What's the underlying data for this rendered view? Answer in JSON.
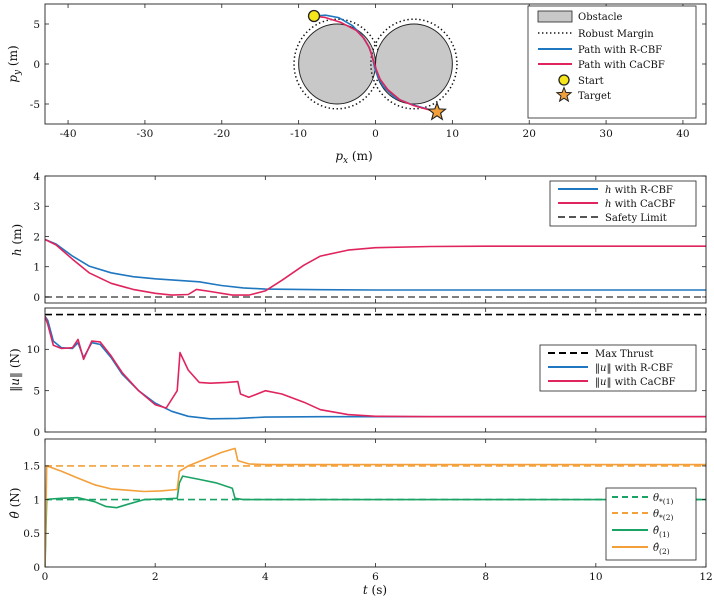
{
  "chart_data": [
    {
      "type": "line",
      "id": "trajectory",
      "xlabel": "p_x (m)",
      "ylabel": "p_y (m)",
      "xlim": [
        -43,
        43
      ],
      "ylim": [
        -7.5,
        7.5
      ],
      "xticks": [
        -40,
        -30,
        -20,
        -10,
        0,
        10,
        20,
        30,
        40
      ],
      "yticks": [
        -5,
        0,
        5
      ],
      "obstacles": [
        {
          "cx": -5,
          "cy": 0,
          "r": 5
        },
        {
          "cx": 5,
          "cy": 0,
          "r": 5
        }
      ],
      "robust_margin_radius": 5.6,
      "start": [
        -8,
        6
      ],
      "target": [
        8,
        -6
      ],
      "series": [
        {
          "name": "Path with R-CBF",
          "color": "#1f77c0",
          "x": [
            -8,
            -6.5,
            -4.8,
            -3,
            -1.8,
            -0.9,
            -0.5,
            -0.3,
            -0.1,
            0.3,
            1.0,
            2.5,
            4.5,
            6.3,
            8
          ],
          "y": [
            6,
            6.1,
            5.8,
            4.8,
            3.6,
            2.2,
            1.2,
            0.4,
            -0.5,
            -1.6,
            -2.8,
            -4.2,
            -5.0,
            -5.5,
            -6
          ]
        },
        {
          "name": "Path with CaCBF",
          "color": "#e0245e",
          "x": [
            -8,
            -6.5,
            -4.5,
            -2.5,
            -1.5,
            -0.8,
            -0.45,
            -0.2,
            0.1,
            0.6,
            1.6,
            3.2,
            5.0,
            6.5,
            8
          ],
          "y": [
            6,
            5.8,
            5.2,
            4.2,
            3.2,
            2.0,
            1.0,
            0.2,
            -0.7,
            -1.9,
            -3.2,
            -4.5,
            -5.2,
            -5.6,
            -6
          ]
        }
      ],
      "legend": {
        "position": "top-right",
        "entries": [
          "Obstacle",
          "Robust Margin",
          "Path with R-CBF",
          "Path with CaCBF",
          "Start",
          "Target"
        ]
      }
    },
    {
      "type": "line",
      "id": "h",
      "xlabel": "",
      "ylabel": "h (m)",
      "xlim": [
        0,
        12
      ],
      "ylim": [
        -0.2,
        4
      ],
      "yticks": [
        0,
        1,
        2,
        3,
        4
      ],
      "series": [
        {
          "name": "h with R-CBF",
          "color": "#1f77c0",
          "x": [
            0,
            0.2,
            0.5,
            0.8,
            1.2,
            1.6,
            2.0,
            2.4,
            2.8,
            3.2,
            3.6,
            4.0,
            5.0,
            6.0,
            8.0,
            10.0,
            12.0
          ],
          "y": [
            1.9,
            1.75,
            1.35,
            1.02,
            0.8,
            0.67,
            0.6,
            0.55,
            0.5,
            0.38,
            0.3,
            0.26,
            0.24,
            0.23,
            0.23,
            0.23,
            0.23
          ]
        },
        {
          "name": "h with CaCBF",
          "color": "#e0245e",
          "x": [
            0,
            0.2,
            0.5,
            0.8,
            1.2,
            1.6,
            2.0,
            2.3,
            2.6,
            2.75,
            3.0,
            3.4,
            3.7,
            4.0,
            4.3,
            4.7,
            5.0,
            5.5,
            6.0,
            7.0,
            8.0,
            10.0,
            12.0
          ],
          "y": [
            1.9,
            1.72,
            1.25,
            0.8,
            0.45,
            0.25,
            0.12,
            0.06,
            0.08,
            0.25,
            0.18,
            0.06,
            0.06,
            0.2,
            0.55,
            1.05,
            1.35,
            1.55,
            1.63,
            1.67,
            1.68,
            1.68,
            1.68
          ]
        },
        {
          "name": "Safety Limit",
          "color": "#555555",
          "dash": true,
          "x": [
            0,
            12
          ],
          "y": [
            0,
            0
          ]
        }
      ],
      "legend": {
        "position": "top-right",
        "entries": [
          "h with R-CBF",
          "h with CaCBF",
          "Safety Limit"
        ]
      }
    },
    {
      "type": "line",
      "id": "u",
      "xlabel": "",
      "ylabel": "||u|| (N)",
      "xlim": [
        0,
        12
      ],
      "ylim": [
        0,
        15
      ],
      "yticks": [
        0,
        5,
        10
      ],
      "series": [
        {
          "name": "Max Thrust",
          "color": "#000000",
          "dash": true,
          "x": [
            0,
            12
          ],
          "y": [
            14.2,
            14.2
          ]
        },
        {
          "name": "||u|| with R-CBF",
          "color": "#1f77c0",
          "x": [
            0,
            0.05,
            0.15,
            0.3,
            0.5,
            0.6,
            0.7,
            0.85,
            1.0,
            1.2,
            1.4,
            1.7,
            2.0,
            2.3,
            2.6,
            3.0,
            3.5,
            4.0,
            5.0,
            6.0,
            8.0,
            10.0,
            12.0
          ],
          "y": [
            14.0,
            13.5,
            11.0,
            10.2,
            10.1,
            10.8,
            9.0,
            10.8,
            10.6,
            9.0,
            7.0,
            5.0,
            3.5,
            2.5,
            1.9,
            1.6,
            1.65,
            1.8,
            1.85,
            1.85,
            1.85,
            1.85,
            1.85
          ]
        },
        {
          "name": "||u|| with CaCBF",
          "color": "#e0245e",
          "x": [
            0,
            0.05,
            0.15,
            0.3,
            0.5,
            0.6,
            0.7,
            0.85,
            1.0,
            1.2,
            1.4,
            1.7,
            2.0,
            2.2,
            2.4,
            2.45,
            2.6,
            2.8,
            3.0,
            3.3,
            3.5,
            3.55,
            3.7,
            4.0,
            4.3,
            4.7,
            5.0,
            5.5,
            6.0,
            7.0,
            8.0,
            10.0,
            12.0
          ],
          "y": [
            14.0,
            13.0,
            10.5,
            10.1,
            10.2,
            11.2,
            8.8,
            11.0,
            10.9,
            9.2,
            7.2,
            5.0,
            3.3,
            2.9,
            5.0,
            9.6,
            7.5,
            6.0,
            5.9,
            6.0,
            6.1,
            4.6,
            4.2,
            5.0,
            4.6,
            3.6,
            2.7,
            2.1,
            1.9,
            1.85,
            1.85,
            1.85,
            1.85
          ]
        }
      ],
      "legend": {
        "position": "center-right",
        "entries": [
          "Max Thrust",
          "||u|| with R-CBF",
          "||u|| with CaCBF"
        ]
      }
    },
    {
      "type": "line",
      "id": "theta",
      "xlabel": "t (s)",
      "ylabel": "θ̂ (N)",
      "xlim": [
        0,
        12
      ],
      "ylim": [
        0,
        1.9
      ],
      "xticks": [
        0,
        2,
        4,
        6,
        8,
        10,
        12
      ],
      "yticks": [
        0,
        0.5,
        1,
        1.5
      ],
      "series": [
        {
          "name": "θ*(1)",
          "color": "#1aa364",
          "dash": true,
          "x": [
            0,
            12
          ],
          "y": [
            1.0,
            1.0
          ]
        },
        {
          "name": "θ*(2)",
          "color": "#f3a03a",
          "dash": true,
          "x": [
            0,
            12
          ],
          "y": [
            1.5,
            1.5
          ]
        },
        {
          "name": "θ̂(1)",
          "color": "#1aa364",
          "x": [
            0,
            0.03,
            0.1,
            0.3,
            0.6,
            0.9,
            1.1,
            1.3,
            1.5,
            1.8,
            2.1,
            2.4,
            2.44,
            2.5,
            2.8,
            3.1,
            3.4,
            3.45,
            3.6,
            4.0,
            6.0,
            12.0
          ],
          "y": [
            0,
            1.0,
            1.01,
            1.02,
            1.03,
            0.97,
            0.9,
            0.88,
            0.93,
            1.0,
            1.01,
            1.02,
            1.25,
            1.35,
            1.3,
            1.25,
            1.17,
            1.02,
            1.0,
            1.0,
            1.0,
            1.0
          ]
        },
        {
          "name": "θ̂(2)",
          "color": "#f3a03a",
          "x": [
            0,
            0.03,
            0.1,
            0.3,
            0.6,
            0.9,
            1.2,
            1.5,
            1.8,
            2.1,
            2.4,
            2.44,
            2.6,
            2.9,
            3.2,
            3.45,
            3.5,
            3.7,
            4.0,
            6.0,
            12.0
          ],
          "y": [
            0,
            1.5,
            1.48,
            1.42,
            1.32,
            1.22,
            1.16,
            1.14,
            1.12,
            1.13,
            1.15,
            1.42,
            1.5,
            1.6,
            1.7,
            1.76,
            1.58,
            1.53,
            1.52,
            1.52,
            1.52
          ]
        }
      ],
      "legend": {
        "position": "bottom-right",
        "entries": [
          "θ*(1)",
          "θ*(2)",
          "θ̂(1)",
          "θ̂(2)"
        ]
      }
    }
  ]
}
